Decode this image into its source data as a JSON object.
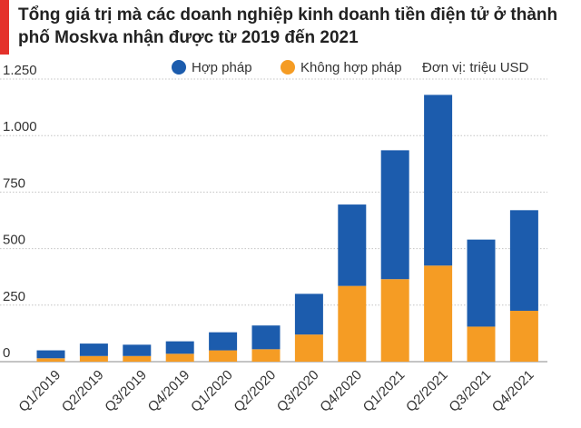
{
  "chart_data": {
    "type": "bar",
    "stacked": true,
    "title": "Tổng giá trị mà các doanh nghiệp kinh doanh tiền điện tử ở thành phố Moskva nhận được từ 2019 đến 2021",
    "unit_note": "Đơn vị: triệu USD",
    "categories": [
      "Q1/2019",
      "Q2/2019",
      "Q3/2019",
      "Q4/2019",
      "Q1/2020",
      "Q2/2020",
      "Q3/2020",
      "Q4/2020",
      "Q1/2021",
      "Q2/2021",
      "Q3/2021",
      "Q4/2021"
    ],
    "series": [
      {
        "name": "Không hợp pháp",
        "color": "#f59c24",
        "values": [
          15,
          25,
          25,
          35,
          50,
          55,
          120,
          335,
          365,
          425,
          155,
          225
        ]
      },
      {
        "name": "Hợp pháp",
        "color": "#1c5cad",
        "values": [
          35,
          55,
          50,
          55,
          80,
          105,
          180,
          360,
          570,
          755,
          385,
          445
        ]
      }
    ],
    "ylim": [
      0,
      1250
    ],
    "yticks": [
      0,
      250,
      500,
      750,
      1000,
      1250
    ],
    "ytick_labels": [
      "0",
      "250",
      "500",
      "750",
      "1.000",
      "1.250"
    ],
    "legend_order": [
      "Hợp pháp",
      "Không hợp pháp"
    ],
    "legend_position": "top-right",
    "grid": true
  }
}
